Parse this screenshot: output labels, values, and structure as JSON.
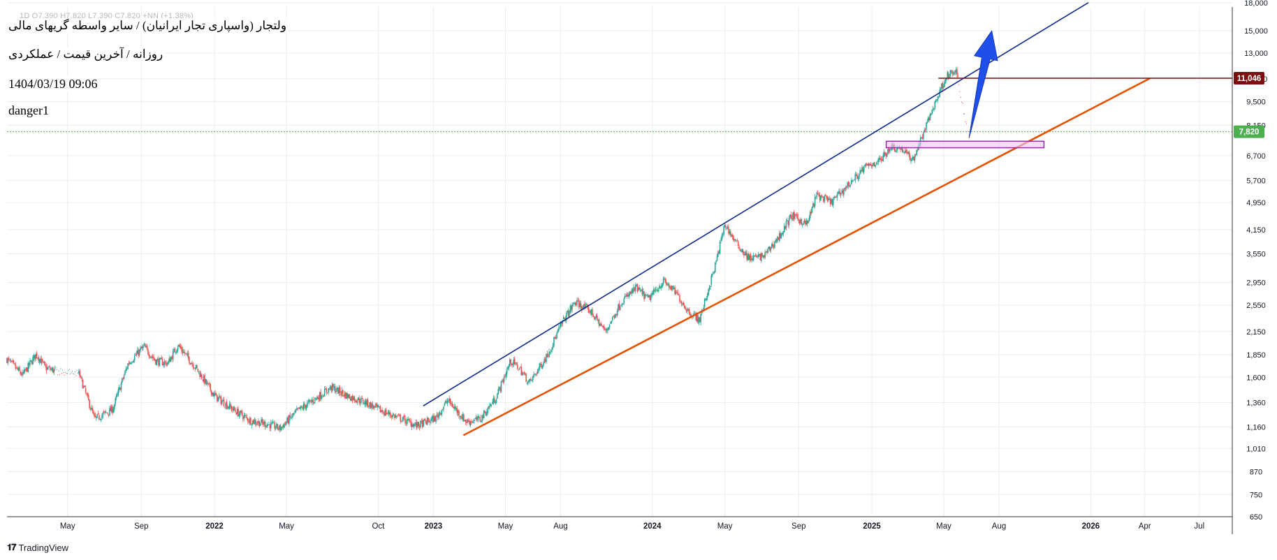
{
  "header": {
    "ohlc_line": "1D  O7,390  H7,820  L7,390  C7,820  +NN (+1.38%)",
    "title": "ولتجار (واسپاری تجار ایرانیان) / سایر واسطه گریهای مالی",
    "subtitle": "روزانه / آخرین قیمت / عملکردی",
    "datetime": "1404/03/19 09:06",
    "author": "danger1"
  },
  "footer": {
    "brand": "TradingView",
    "logo_icon": "tradingview-logo-icon"
  },
  "colors": {
    "up": "#26a69a",
    "down": "#ef5350",
    "grid": "#e8edf2",
    "upper_trendline": "#0d2a8c",
    "lower_trendline": "#e65100",
    "resistance_line": "#7b0f0f",
    "arrow": "#1e4fe8",
    "box": "#9c27b0",
    "box_fill": "#f3c8f7",
    "last_price": "#4caf50"
  },
  "chart_data": {
    "type": "candlestick",
    "scale": "log",
    "ylim": [
      650,
      17500
    ],
    "y_ticks": [
      "650",
      "750",
      "870",
      "1,010",
      "1,160",
      "1,360",
      "1,600",
      "1,850",
      "2,150",
      "2,550",
      "2,950",
      "3,550",
      "4,150",
      "4,950",
      "5,700",
      "6,700",
      "8,150",
      "9,500",
      "11,000",
      "13,000",
      "15,000",
      "18,000"
    ],
    "x_ticks": [
      "May",
      "Sep",
      "2022",
      "May",
      "Oct",
      "2023",
      "May",
      "Aug",
      "2024",
      "May",
      "Sep",
      "2025",
      "May",
      "Aug",
      "2026",
      "Apr",
      "Jul"
    ],
    "x_tick_dates": [
      "2021-05-01",
      "2021-09-01",
      "2022-01-01",
      "2022-05-01",
      "2022-10-01",
      "2023-01-01",
      "2023-05-01",
      "2023-08-01",
      "2024-01-01",
      "2024-05-01",
      "2024-09-01",
      "2025-01-01",
      "2025-05-01",
      "2025-08-01",
      "2026-01-01",
      "2026-04-01",
      "2026-07-01"
    ],
    "x_range": [
      "2021-01-20",
      "2026-08-25"
    ],
    "price_path": [
      [
        "2021-01-20",
        1800
      ],
      [
        "2021-02-15",
        1620
      ],
      [
        "2021-03-10",
        1860
      ],
      [
        "2021-03-25",
        1700
      ],
      [
        "2021-04-20",
        1650
      ],
      [
        "2021-05-20",
        1640
      ],
      [
        "2021-06-15",
        1220
      ],
      [
        "2021-07-15",
        1300
      ],
      [
        "2021-08-10",
        1750
      ],
      [
        "2021-09-05",
        1950
      ],
      [
        "2021-09-25",
        1780
      ],
      [
        "2021-10-15",
        1750
      ],
      [
        "2021-11-01",
        1970
      ],
      [
        "2021-12-01",
        1700
      ],
      [
        "2022-01-01",
        1420
      ],
      [
        "2022-02-01",
        1300
      ],
      [
        "2022-03-01",
        1210
      ],
      [
        "2022-04-01",
        1180
      ],
      [
        "2022-04-20",
        1150
      ],
      [
        "2022-05-20",
        1290
      ],
      [
        "2022-06-20",
        1400
      ],
      [
        "2022-07-15",
        1500
      ],
      [
        "2022-08-10",
        1420
      ],
      [
        "2022-09-10",
        1360
      ],
      [
        "2022-10-05",
        1290
      ],
      [
        "2022-11-05",
        1230
      ],
      [
        "2022-12-05",
        1170
      ],
      [
        "2023-01-05",
        1230
      ],
      [
        "2023-01-25",
        1380
      ],
      [
        "2023-02-25",
        1200
      ],
      [
        "2023-03-20",
        1220
      ],
      [
        "2023-04-15",
        1400
      ],
      [
        "2023-05-10",
        1780
      ],
      [
        "2023-05-25",
        1690
      ],
      [
        "2023-06-10",
        1540
      ],
      [
        "2023-07-10",
        1850
      ],
      [
        "2023-08-05",
        2300
      ],
      [
        "2023-08-25",
        2600
      ],
      [
        "2023-09-20",
        2450
      ],
      [
        "2023-10-15",
        2150
      ],
      [
        "2023-11-10",
        2600
      ],
      [
        "2023-12-05",
        2850
      ],
      [
        "2023-12-25",
        2650
      ],
      [
        "2024-01-20",
        2980
      ],
      [
        "2024-02-10",
        2750
      ],
      [
        "2024-03-01",
        2450
      ],
      [
        "2024-03-20",
        2320
      ],
      [
        "2024-04-15",
        3300
      ],
      [
        "2024-05-01",
        4300
      ],
      [
        "2024-05-20",
        3800
      ],
      [
        "2024-06-10",
        3450
      ],
      [
        "2024-07-05",
        3500
      ],
      [
        "2024-08-01",
        4000
      ],
      [
        "2024-08-20",
        4550
      ],
      [
        "2024-09-15",
        4300
      ],
      [
        "2024-10-01",
        5200
      ],
      [
        "2024-10-25",
        4950
      ],
      [
        "2024-11-25",
        5600
      ],
      [
        "2024-12-20",
        6200
      ],
      [
        "2025-01-15",
        6500
      ],
      [
        "2025-02-01",
        7100
      ],
      [
        "2025-02-20",
        7000
      ],
      [
        "2025-03-10",
        6500
      ],
      [
        "2025-03-25",
        7500
      ],
      [
        "2025-04-15",
        9300
      ],
      [
        "2025-05-05",
        11200
      ],
      [
        "2025-05-22",
        11500
      ],
      [
        "2025-06-10",
        7820
      ]
    ],
    "last_price": 7820,
    "last_price_label": "7,820",
    "resistance": 11046,
    "resistance_label": "11,046",
    "drawings": {
      "upper_trendline": [
        [
          "2022-12-15",
          1330
        ],
        [
          "2025-12-28",
          18000
        ]
      ],
      "lower_trendline": [
        [
          "2023-02-20",
          1100
        ],
        [
          "2026-04-10",
          11046
        ]
      ],
      "resistance_line": [
        [
          "2025-04-22",
          11046
        ],
        [
          "2026-08-25",
          11046
        ]
      ],
      "box": [
        [
          "2025-01-25",
          7350
        ],
        [
          "2025-10-15",
          7050
        ]
      ],
      "arrow": [
        [
          "2025-06-12",
          7500
        ],
        [
          "2025-07-20",
          15000
        ]
      ]
    }
  }
}
